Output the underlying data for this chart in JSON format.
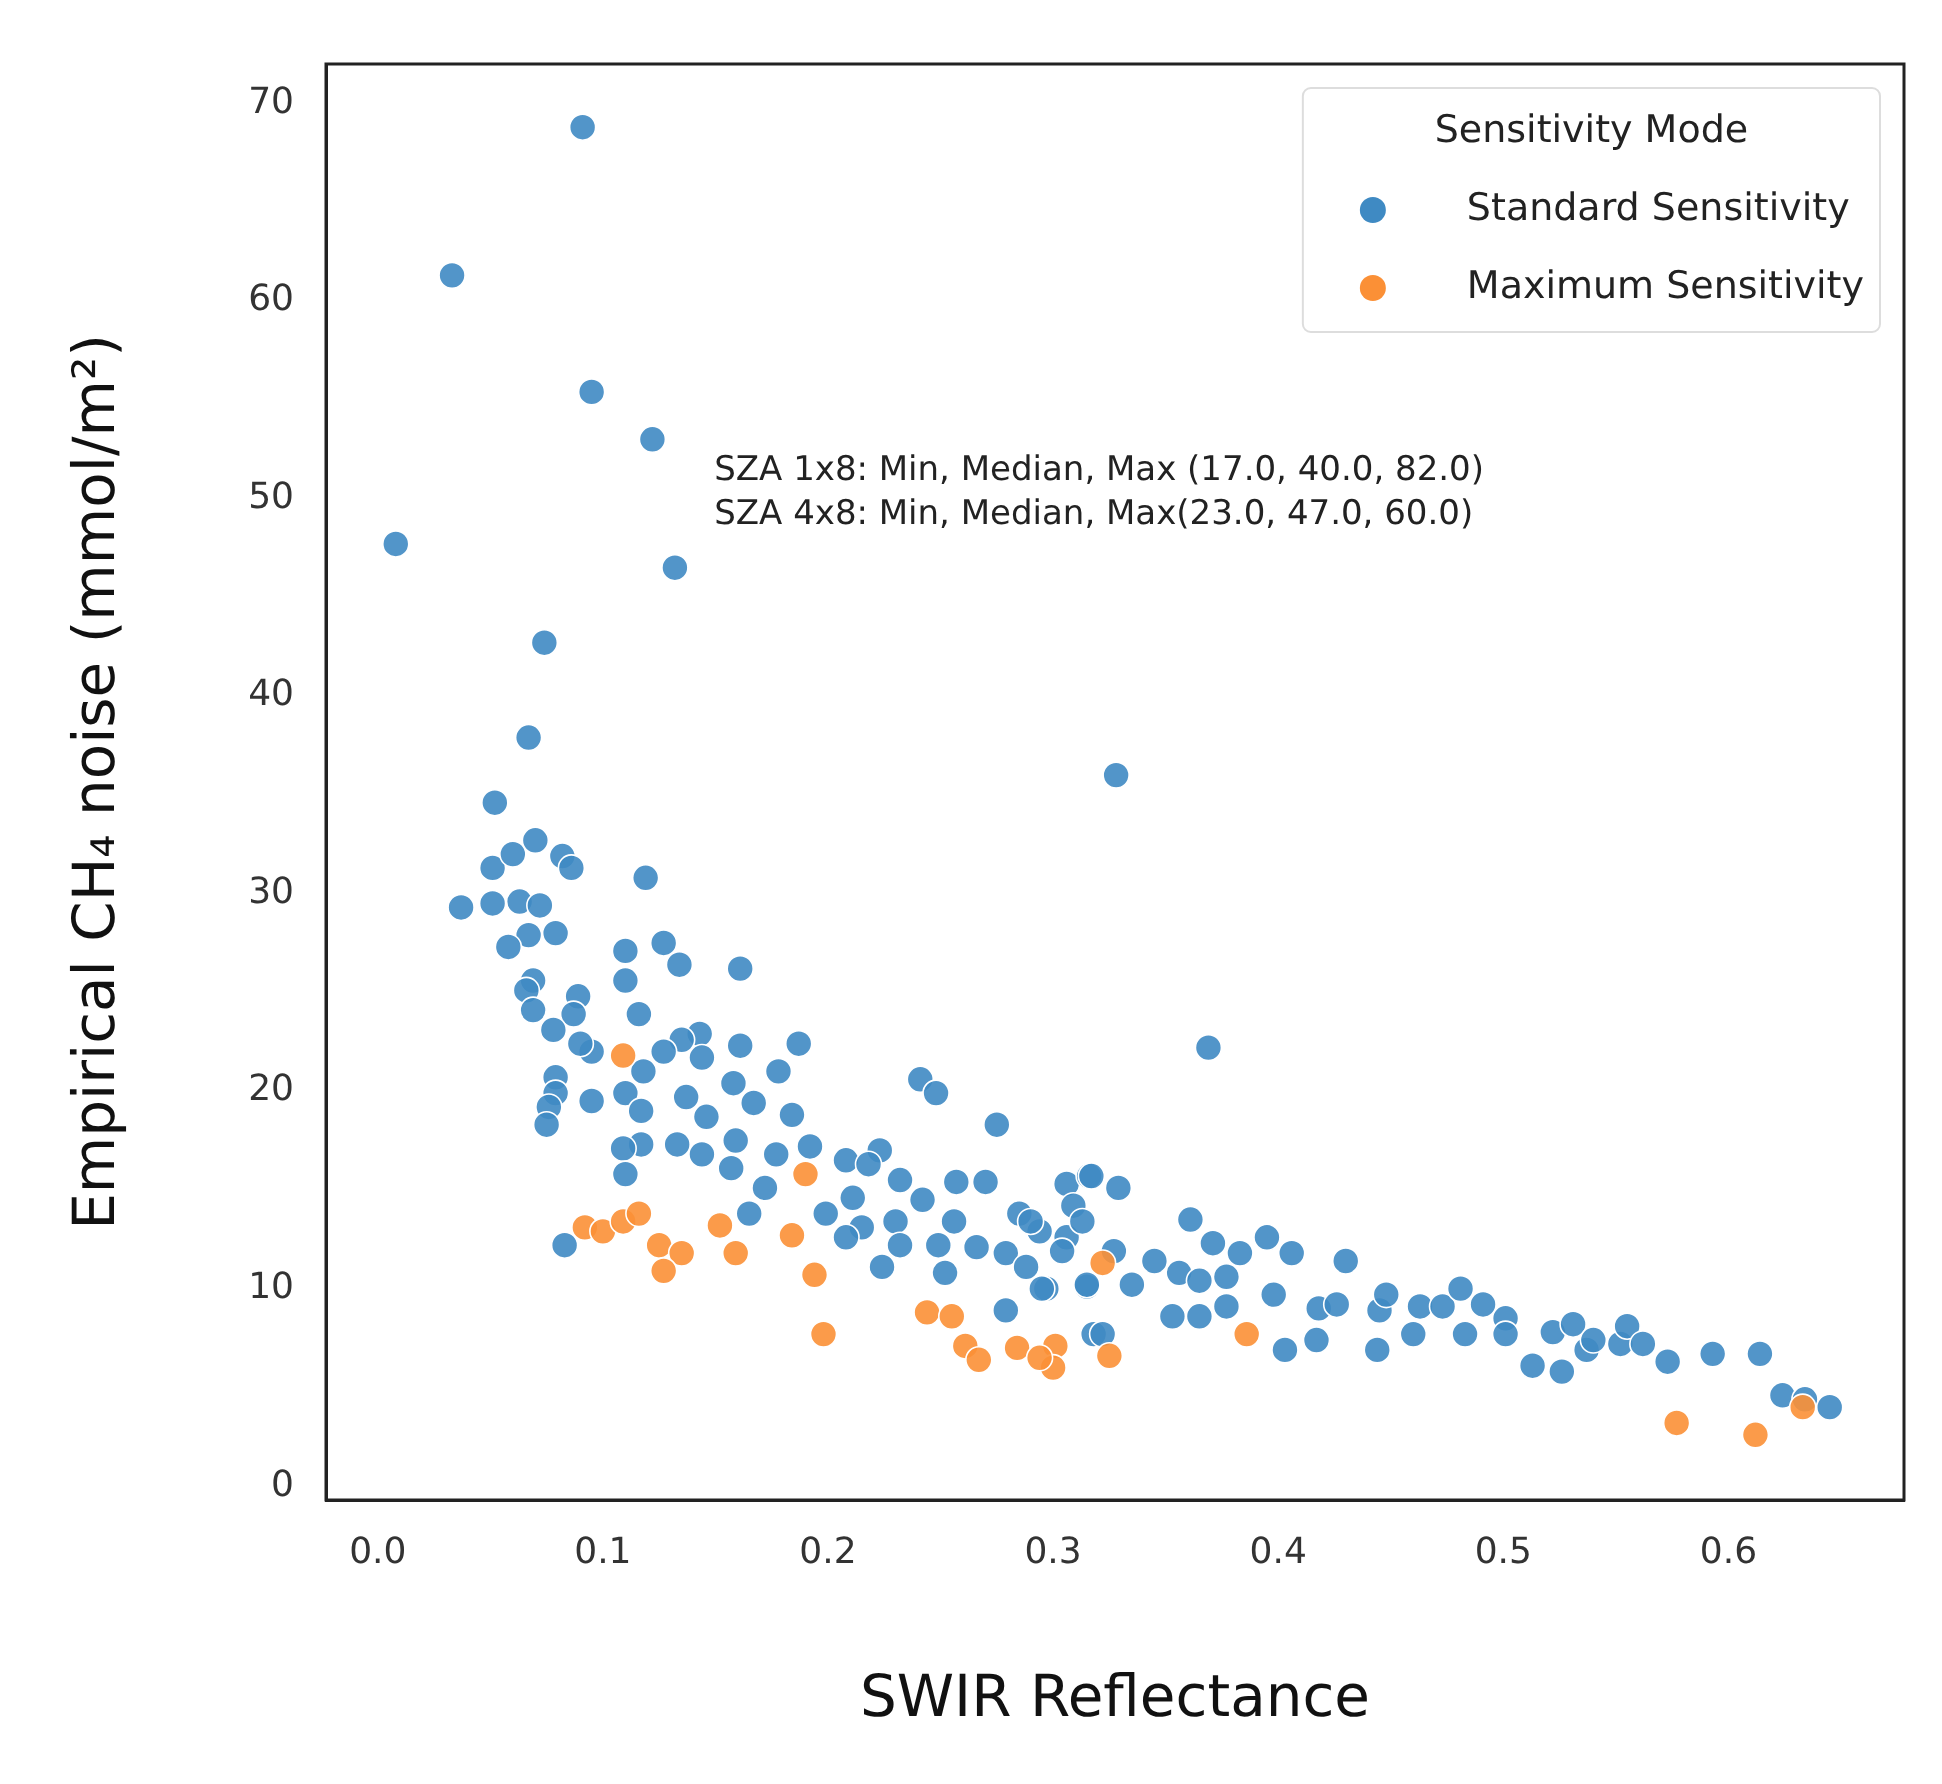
{
  "chart_data": {
    "type": "scatter",
    "xlabel": "SWIR Reflectance",
    "ylabel": "Empirical CH₄ noise (mmol/m²)",
    "legend_title": "Sensitivity Mode",
    "legend": "top right",
    "marker": "circle",
    "xlim": [
      -0.023,
      0.678
    ],
    "xticks": [
      {
        "value": 0,
        "label": "0.0"
      },
      0.1,
      0.2,
      0.3,
      0.4,
      0.5,
      0.6
    ],
    "ylim": [
      -0.7,
      72
    ],
    "yticks": [
      0,
      10,
      20,
      30,
      40,
      50,
      60,
      70
    ],
    "annotations": [
      "SZA 1x8: Min, Median, Max (17.0, 40.0, 82.0)",
      "SZA 4x8: Min, Median, Max(23.0, 47.0, 60.0)"
    ],
    "series": [
      {
        "name": "Standard Sensitivity",
        "color": "#3f8ac3",
        "x": [
          0.091,
          0.033,
          0.095,
          0.122,
          0.008,
          0.132,
          0.074,
          0.067,
          0.052,
          0.328,
          0.369,
          0.051,
          0.06,
          0.07,
          0.082,
          0.086,
          0.119,
          0.037,
          0.051,
          0.063,
          0.072,
          0.079,
          0.067,
          0.058,
          0.11,
          0.127,
          0.134,
          0.161,
          0.11,
          0.069,
          0.066,
          0.089,
          0.069,
          0.087,
          0.116,
          0.078,
          0.143,
          0.135,
          0.187,
          0.161,
          0.095,
          0.127,
          0.09,
          0.144,
          0.118,
          0.178,
          0.079,
          0.158,
          0.241,
          0.248,
          0.079,
          0.095,
          0.11,
          0.137,
          0.167,
          0.184,
          0.076,
          0.075,
          0.275,
          0.146,
          0.117,
          0.159,
          0.133,
          0.117,
          0.109,
          0.144,
          0.177,
          0.192,
          0.223,
          0.208,
          0.11,
          0.157,
          0.218,
          0.232,
          0.257,
          0.27,
          0.306,
          0.316,
          0.172,
          0.211,
          0.242,
          0.165,
          0.199,
          0.23,
          0.256,
          0.285,
          0.294,
          0.306,
          0.215,
          0.249,
          0.208,
          0.232,
          0.266,
          0.279,
          0.224,
          0.252,
          0.288,
          0.297,
          0.315,
          0.279,
          0.318,
          0.083,
          0.317,
          0.329,
          0.309,
          0.29,
          0.313,
          0.304,
          0.327,
          0.345,
          0.361,
          0.371,
          0.383,
          0.395,
          0.406,
          0.43,
          0.315,
          0.335,
          0.356,
          0.365,
          0.377,
          0.398,
          0.418,
          0.426,
          0.295,
          0.353,
          0.365,
          0.377,
          0.322,
          0.403,
          0.417,
          0.444,
          0.445,
          0.448,
          0.46,
          0.463,
          0.473,
          0.481,
          0.483,
          0.491,
          0.501,
          0.501,
          0.513,
          0.522,
          0.526,
          0.531,
          0.537,
          0.54,
          0.552,
          0.555,
          0.562,
          0.573,
          0.593,
          0.614,
          0.624,
          0.634,
          0.645
        ],
        "values": [
          68.8,
          61.3,
          55.4,
          53.0,
          47.7,
          46.5,
          42.7,
          37.9,
          34.6,
          36.0,
          22.2,
          31.3,
          32.0,
          32.7,
          31.9,
          31.3,
          30.8,
          29.3,
          29.5,
          29.6,
          29.4,
          28.0,
          27.9,
          27.3,
          27.1,
          27.5,
          26.4,
          26.2,
          25.6,
          25.6,
          25.1,
          24.8,
          24.1,
          23.9,
          23.9,
          23.1,
          22.9,
          22.6,
          22.4,
          22.3,
          22.0,
          22.0,
          22.4,
          21.7,
          21.0,
          21.0,
          20.7,
          20.4,
          20.6,
          19.9,
          19.9,
          19.5,
          19.9,
          19.7,
          19.4,
          18.8,
          19.2,
          18.3,
          18.3,
          18.7,
          19.0,
          17.5,
          17.3,
          17.3,
          17.1,
          16.8,
          16.8,
          17.2,
          17.0,
          16.5,
          15.8,
          16.1,
          16.3,
          15.5,
          15.4,
          15.4,
          15.3,
          15.7,
          15.1,
          14.6,
          14.5,
          13.8,
          13.8,
          13.4,
          13.4,
          13.8,
          12.9,
          12.6,
          13.1,
          12.2,
          12.6,
          12.2,
          12.1,
          11.8,
          11.1,
          10.8,
          11.1,
          10.0,
          10.1,
          8.9,
          7.7,
          12.2,
          15.7,
          15.1,
          14.2,
          13.4,
          13.4,
          11.9,
          11.9,
          11.4,
          13.5,
          12.3,
          11.8,
          12.6,
          11.8,
          11.4,
          10.2,
          10.2,
          10.8,
          10.4,
          10.6,
          9.7,
          9.0,
          9.2,
          10.0,
          8.6,
          8.6,
          9.1,
          7.7,
          6.9,
          7.4,
          6.9,
          8.9,
          9.7,
          7.7,
          9.1,
          9.1,
          10.0,
          7.7,
          9.2,
          8.5,
          7.7,
          6.1,
          7.8,
          5.8,
          8.2,
          6.9,
          7.4,
          7.2,
          8.1,
          7.2,
          6.3,
          6.7,
          6.7,
          4.6,
          4.4,
          4.0
        ]
      },
      {
        "name": "Maximum Sensitivity",
        "color": "#fb9036",
        "x": [
          0.109,
          0.19,
          0.092,
          0.1,
          0.109,
          0.116,
          0.152,
          0.125,
          0.135,
          0.127,
          0.159,
          0.184,
          0.194,
          0.198,
          0.244,
          0.255,
          0.261,
          0.267,
          0.284,
          0.301,
          0.3,
          0.294,
          0.322,
          0.325,
          0.386,
          0.577,
          0.612,
          0.633
        ],
        "values": [
          21.8,
          15.8,
          13.1,
          12.9,
          13.4,
          13.8,
          13.2,
          12.2,
          11.8,
          10.9,
          11.8,
          12.7,
          10.7,
          7.7,
          8.8,
          8.6,
          7.1,
          6.4,
          7.0,
          7.1,
          6.0,
          6.5,
          11.3,
          6.6,
          7.7,
          3.2,
          2.6,
          4.0
        ]
      }
    ]
  }
}
